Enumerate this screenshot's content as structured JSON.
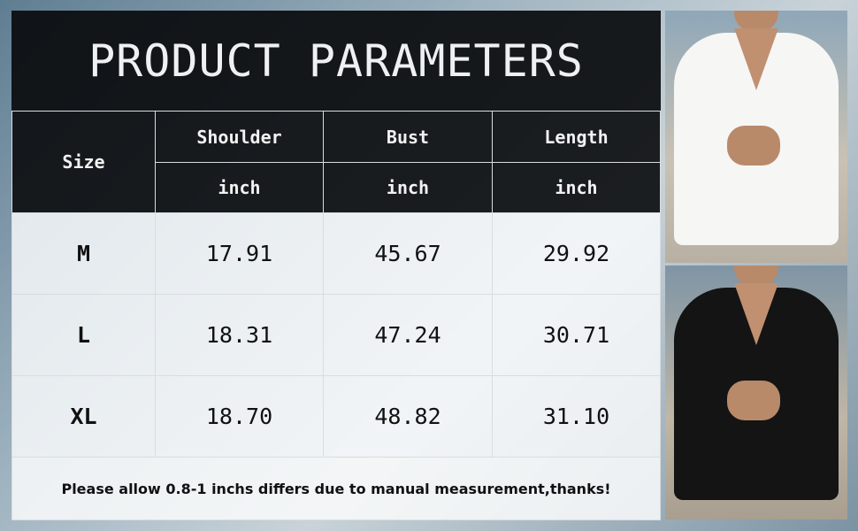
{
  "title": "PRODUCT PARAMETERS",
  "table": {
    "size_header": "Size",
    "columns": [
      {
        "label": "Shoulder",
        "unit": "inch"
      },
      {
        "label": "Bust",
        "unit": "inch"
      },
      {
        "label": "Length",
        "unit": "inch"
      }
    ],
    "rows": [
      {
        "size": "M",
        "values": [
          "17.91",
          "45.67",
          "29.92"
        ]
      },
      {
        "size": "L",
        "values": [
          "18.31",
          "47.24",
          "30.71"
        ]
      },
      {
        "size": "XL",
        "values": [
          "18.70",
          "48.82",
          "31.10"
        ]
      }
    ]
  },
  "note": "Please allow 0.8-1 inchs differs due to manual measurement,thanks!",
  "photos": [
    {
      "shirt_color": "#f6f6f4",
      "description": "white v-neck shirt"
    },
    {
      "shirt_color": "#141414",
      "description": "black v-neck shirt"
    }
  ]
}
